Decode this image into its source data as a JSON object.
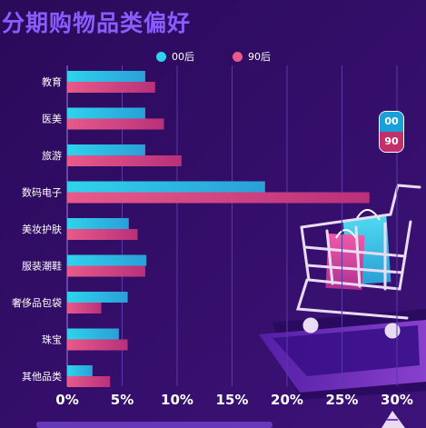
{
  "title": "分期购物品类偏好",
  "colors": {
    "background": "#2a0b5e",
    "title": "#8a5cff",
    "series_00": "#2fd3ec",
    "series_90": "#e85a8a",
    "badge_top": "#1aa0d8",
    "badge_bottom": "#c2306b"
  },
  "badge": {
    "top": "00",
    "bottom": "90"
  },
  "illustration": "shopping-cart-on-phone",
  "chart_data": {
    "type": "bar",
    "orientation": "horizontal",
    "categories": [
      "教育",
      "医美",
      "旅游",
      "数码电子",
      "美妆护肤",
      "服装潮鞋",
      "奢侈品包袋",
      "珠宝",
      "其他品类"
    ],
    "series": [
      {
        "name": "00后",
        "values": [
          7.1,
          7.1,
          7.1,
          18.0,
          5.6,
          7.2,
          5.5,
          4.7,
          2.3
        ]
      },
      {
        "name": "90后",
        "values": [
          8.0,
          8.8,
          10.4,
          27.5,
          6.4,
          7.1,
          3.1,
          5.5,
          3.9
        ]
      }
    ],
    "x_ticks": [
      "0%",
      "5%",
      "10%",
      "15%",
      "20%",
      "25%",
      "30%"
    ],
    "xlim": [
      0,
      30
    ],
    "xlabel": "",
    "ylabel": "",
    "grid": true,
    "legend_position": "top"
  }
}
